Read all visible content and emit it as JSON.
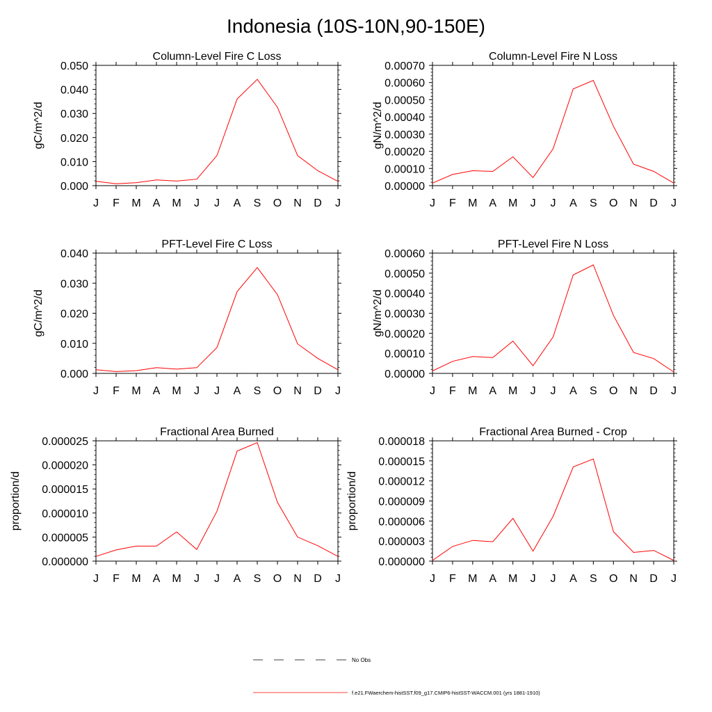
{
  "figure_title": "Indonesia (10S-10N,90-150E)",
  "line_color": "#ff0000",
  "legend": {
    "obs_label": "No Obs",
    "model_label": "f.e21.FWaerchem-histSST.f09_g17.CMIP6-histSST-WACCM.001 (yrs 1881-1910)"
  },
  "chart_data": [
    {
      "type": "line",
      "title": "Column-Level Fire C Loss",
      "ylabel": "gC/m^2/d",
      "categories": [
        "J",
        "F",
        "M",
        "A",
        "M",
        "J",
        "J",
        "A",
        "S",
        "O",
        "N",
        "D",
        "J"
      ],
      "ylim": [
        0,
        0.05
      ],
      "yticks": [
        "0.000",
        "0.010",
        "0.020",
        "0.030",
        "0.040",
        "0.050"
      ],
      "series": [
        {
          "values": [
            0.0018,
            0.0008,
            0.0012,
            0.0024,
            0.0019,
            0.0027,
            0.0125,
            0.036,
            0.0442,
            0.0326,
            0.0125,
            0.0062,
            0.0018
          ]
        }
      ]
    },
    {
      "type": "line",
      "title": "Column-Level Fire N Loss",
      "ylabel": "gN/m^2/d",
      "categories": [
        "J",
        "F",
        "M",
        "A",
        "M",
        "J",
        "J",
        "A",
        "S",
        "O",
        "N",
        "D",
        "J"
      ],
      "ylim": [
        0,
        0.0007
      ],
      "yticks": [
        "0.00000",
        "0.00010",
        "0.00020",
        "0.00030",
        "0.00040",
        "0.00050",
        "0.00060",
        "0.00070"
      ],
      "series": [
        {
          "values": [
            1.5e-05,
            6.5e-05,
            8.7e-05,
            8.3e-05,
            0.000168,
            4.7e-05,
            0.000215,
            0.000563,
            0.000612,
            0.000345,
            0.000125,
            8.3e-05,
            1.5e-05
          ]
        }
      ]
    },
    {
      "type": "line",
      "title": "PFT-Level Fire C Loss",
      "ylabel": "gC/m^2/d",
      "categories": [
        "J",
        "F",
        "M",
        "A",
        "M",
        "J",
        "J",
        "A",
        "S",
        "O",
        "N",
        "D",
        "J"
      ],
      "ylim": [
        0,
        0.04
      ],
      "yticks": [
        "0.000",
        "0.010",
        "0.020",
        "0.030",
        "0.040"
      ],
      "series": [
        {
          "values": [
            0.0012,
            0.0006,
            0.0009,
            0.0019,
            0.0014,
            0.0019,
            0.0086,
            0.0272,
            0.0352,
            0.0262,
            0.0098,
            0.005,
            0.0012
          ]
        }
      ]
    },
    {
      "type": "line",
      "title": "PFT-Level Fire N Loss",
      "ylabel": "gN/m^2/d",
      "categories": [
        "J",
        "F",
        "M",
        "A",
        "M",
        "J",
        "J",
        "A",
        "S",
        "O",
        "N",
        "D",
        "J"
      ],
      "ylim": [
        0,
        0.0006
      ],
      "yticks": [
        "0.00000",
        "0.00010",
        "0.00020",
        "0.00030",
        "0.00040",
        "0.00050",
        "0.00060"
      ],
      "series": [
        {
          "values": [
            1.2e-05,
            6e-05,
            8.4e-05,
            7.9e-05,
            0.000161,
            3.8e-05,
            0.000182,
            0.000491,
            0.000541,
            0.000289,
            0.000104,
            7.4e-05,
            7e-06
          ]
        }
      ]
    },
    {
      "type": "line",
      "title": "Fractional Area Burned",
      "ylabel": "proportion/d",
      "categories": [
        "J",
        "F",
        "M",
        "A",
        "M",
        "J",
        "J",
        "A",
        "S",
        "O",
        "N",
        "D",
        "J"
      ],
      "ylim": [
        0,
        2.8e-05
      ],
      "yticks": [
        "0.000000",
        "0.000005",
        "0.000010",
        "0.000015",
        "0.000020",
        "0.000025"
      ],
      "series": [
        {
          "values": [
            1.1e-06,
            2.6e-06,
            3.5e-06,
            3.5e-06,
            6.8e-06,
            2.7e-06,
            1.16e-05,
            2.56e-05,
            2.76e-05,
            1.37e-05,
            5.6e-06,
            3.6e-06,
            1.1e-06
          ]
        }
      ]
    },
    {
      "type": "line",
      "title": "Fractional Area Burned - Crop",
      "ylabel": "proportion/d",
      "categories": [
        "J",
        "F",
        "M",
        "A",
        "M",
        "J",
        "J",
        "A",
        "S",
        "O",
        "N",
        "D",
        "J"
      ],
      "ylim": [
        0,
        1.8e-05
      ],
      "yticks": [
        "0.000000",
        "0.000003",
        "0.000006",
        "0.000009",
        "0.000012",
        "0.000015",
        "0.000018"
      ],
      "series": [
        {
          "values": [
            1e-07,
            2.2e-06,
            3.1e-06,
            2.9e-06,
            6.4e-06,
            1.5e-06,
            6.7e-06,
            1.41e-05,
            1.53e-05,
            4.4e-06,
            1.3e-06,
            1.6e-06,
            1e-07
          ]
        }
      ]
    }
  ]
}
